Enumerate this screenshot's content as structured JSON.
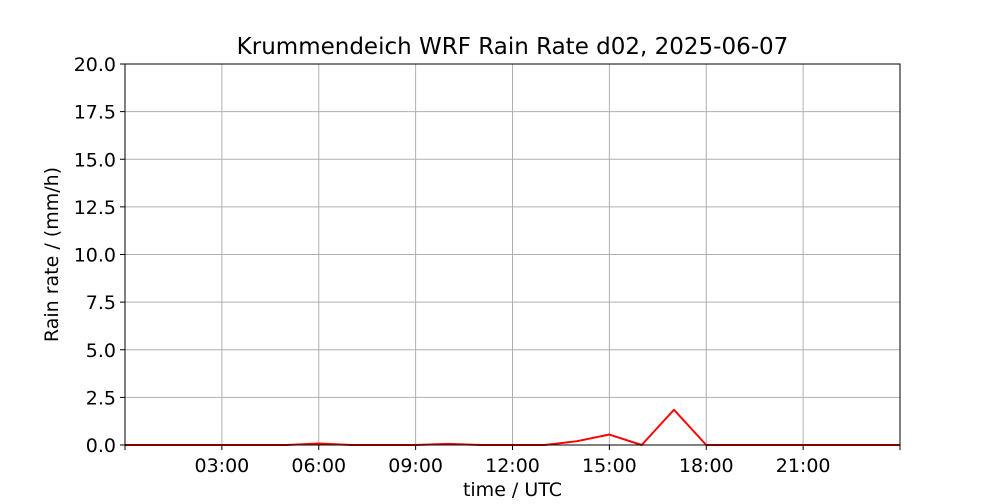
{
  "chart_data": {
    "type": "line",
    "title": "Krummendeich WRF Rain Rate d02, 2025-06-07",
    "xlabel": "time / UTC",
    "ylabel": "Rain rate / (mm/h)",
    "xlim": [
      "00:00",
      "24:00"
    ],
    "ylim": [
      0,
      20
    ],
    "xticks": [
      "03:00",
      "06:00",
      "09:00",
      "12:00",
      "15:00",
      "18:00",
      "21:00"
    ],
    "yticks": [
      "0.0",
      "2.5",
      "5.0",
      "7.5",
      "10.0",
      "12.5",
      "15.0",
      "17.5",
      "20.0"
    ],
    "grid": true,
    "series": [
      {
        "color": "#ff0000",
        "x": [
          "00:00",
          "01:00",
          "02:00",
          "03:00",
          "04:00",
          "05:00",
          "06:00",
          "07:00",
          "08:00",
          "09:00",
          "10:00",
          "11:00",
          "12:00",
          "13:00",
          "14:00",
          "15:00",
          "16:00",
          "17:00",
          "18:00",
          "19:00",
          "20:00",
          "21:00",
          "22:00",
          "23:00",
          "24:00"
        ],
        "values": [
          0,
          0,
          0,
          0,
          0,
          0,
          0.08,
          0,
          0,
          0,
          0.06,
          0,
          0,
          0,
          0.2,
          0.55,
          0,
          1.85,
          0,
          0,
          0,
          0,
          0,
          0,
          0
        ]
      }
    ]
  }
}
